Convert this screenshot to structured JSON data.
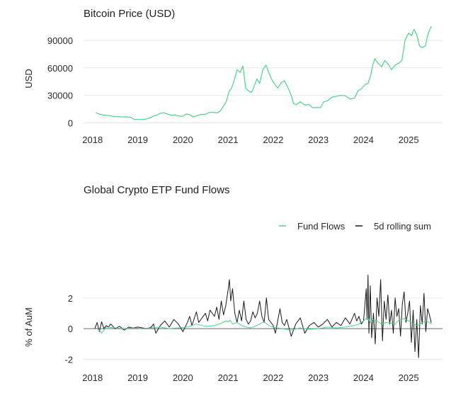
{
  "chart_data": [
    {
      "type": "line",
      "title": "Bitcoin Price (USD)",
      "xlabel": "",
      "ylabel": "USD",
      "x_ticks": [
        "2018",
        "2019",
        "2020",
        "2021",
        "2022",
        "2023",
        "2024",
        "2025"
      ],
      "y_ticks": [
        "0",
        "30000",
        "60000",
        "90000"
      ],
      "xlim": [
        2017.8,
        2025.75
      ],
      "ylim": [
        -5000,
        100000
      ],
      "grid": true,
      "series": [
        {
          "name": "",
          "color": "#4fd18b",
          "x": [
            2018.08,
            2018.15,
            2018.25,
            2018.35,
            2018.45,
            2018.55,
            2018.65,
            2018.75,
            2018.85,
            2018.92,
            2019.0,
            2019.08,
            2019.15,
            2019.25,
            2019.35,
            2019.42,
            2019.5,
            2019.58,
            2019.66,
            2019.75,
            2019.83,
            2019.92,
            2020.0,
            2020.08,
            2020.17,
            2020.22,
            2020.3,
            2020.4,
            2020.5,
            2020.58,
            2020.66,
            2020.75,
            2020.83,
            2020.9,
            2020.96,
            2021.02,
            2021.08,
            2021.14,
            2021.2,
            2021.27,
            2021.33,
            2021.39,
            2021.45,
            2021.52,
            2021.58,
            2021.64,
            2021.7,
            2021.77,
            2021.84,
            2021.9,
            2021.96,
            2022.02,
            2022.1,
            2022.18,
            2022.25,
            2022.33,
            2022.4,
            2022.45,
            2022.52,
            2022.6,
            2022.7,
            2022.8,
            2022.87,
            2022.95,
            2023.05,
            2023.12,
            2023.2,
            2023.3,
            2023.4,
            2023.5,
            2023.6,
            2023.7,
            2023.8,
            2023.88,
            2023.95,
            2024.04,
            2024.1,
            2024.16,
            2024.2,
            2024.25,
            2024.32,
            2024.4,
            2024.47,
            2024.55,
            2024.62,
            2024.7,
            2024.78,
            2024.85,
            2024.92,
            2025.0,
            2025.06,
            2025.12,
            2025.18,
            2025.24,
            2025.3,
            2025.37,
            2025.43,
            2025.5
          ],
          "y": [
            11000,
            9500,
            8500,
            8000,
            7200,
            6800,
            6500,
            6500,
            6000,
            3800,
            3700,
            3600,
            3800,
            5000,
            7500,
            8500,
            10500,
            11000,
            9500,
            8300,
            8700,
            7300,
            7200,
            9800,
            8500,
            6500,
            7500,
            9200,
            9300,
            11300,
            11600,
            10800,
            13000,
            18500,
            23000,
            34000,
            38000,
            47000,
            58000,
            55000,
            62000,
            38000,
            35000,
            33000,
            40000,
            48000,
            43000,
            58000,
            63000,
            55000,
            48000,
            43000,
            38000,
            44000,
            46000,
            38000,
            30000,
            21000,
            20000,
            23000,
            19500,
            20000,
            16500,
            16800,
            16700,
            23000,
            24000,
            28000,
            29000,
            30000,
            29500,
            26000,
            27000,
            35000,
            37000,
            42000,
            43000,
            52000,
            62000,
            70000,
            65000,
            61000,
            68000,
            64000,
            58000,
            63000,
            65000,
            68000,
            90000,
            98000,
            95000,
            102000,
            96000,
            84000,
            82000,
            84000,
            97000,
            105000
          ]
        }
      ]
    },
    {
      "type": "line",
      "title": "Global Crypto ETP Fund Flows",
      "xlabel": "",
      "ylabel": "% of AuM",
      "x_ticks": [
        "2018",
        "2019",
        "2020",
        "2021",
        "2022",
        "2023",
        "2024",
        "2025"
      ],
      "y_ticks": [
        "-2",
        "0",
        "2"
      ],
      "xlim": [
        2017.8,
        2025.75
      ],
      "ylim": [
        -2.4,
        3.7
      ],
      "grid": true,
      "legend_position": "top-right",
      "series": [
        {
          "name": "Fund Flows",
          "color": "#4fd18b",
          "x": [
            2018.1,
            2018.2,
            2018.3,
            2018.5,
            2018.7,
            2018.9,
            2019.1,
            2019.3,
            2019.5,
            2019.7,
            2019.9,
            2020.1,
            2020.3,
            2020.5,
            2020.7,
            2020.85,
            2020.95,
            2021.0,
            2021.05,
            2021.1,
            2021.2,
            2021.3,
            2021.4,
            2021.5,
            2021.6,
            2021.7,
            2021.8,
            2021.9,
            2022.0,
            2022.2,
            2022.4,
            2022.6,
            2022.8,
            2023.0,
            2023.2,
            2023.4,
            2023.6,
            2023.8,
            2023.9,
            2024.0,
            2024.05,
            2024.1,
            2024.15,
            2024.2,
            2024.3,
            2024.4,
            2024.5,
            2024.6,
            2024.7,
            2024.8,
            2024.9,
            2025.0,
            2025.1,
            2025.2,
            2025.3,
            2025.4,
            2025.5
          ],
          "y": [
            0.05,
            -0.3,
            0.1,
            0.05,
            0.0,
            0.05,
            0.0,
            0.05,
            0.1,
            0.0,
            0.05,
            0.1,
            0.3,
            0.15,
            0.2,
            0.35,
            0.5,
            0.45,
            0.55,
            0.3,
            0.4,
            0.2,
            0.1,
            0.05,
            0.15,
            0.3,
            0.45,
            0.2,
            0.1,
            0.0,
            -0.1,
            0.05,
            -0.05,
            0.0,
            0.1,
            0.05,
            0.1,
            0.2,
            0.3,
            0.5,
            0.65,
            0.7,
            0.4,
            0.6,
            0.5,
            0.3,
            0.4,
            0.35,
            0.3,
            0.6,
            0.65,
            0.5,
            0.3,
            0.2,
            0.4,
            0.5,
            0.3
          ]
        },
        {
          "name": "5d rolling sum",
          "color": "#1a1a1a",
          "x": [
            2018.05,
            2018.1,
            2018.15,
            2018.2,
            2018.25,
            2018.3,
            2018.35,
            2018.4,
            2018.5,
            2018.6,
            2018.7,
            2018.8,
            2018.9,
            2019.0,
            2019.1,
            2019.2,
            2019.3,
            2019.35,
            2019.4,
            2019.5,
            2019.6,
            2019.7,
            2019.8,
            2019.9,
            2020.0,
            2020.1,
            2020.15,
            2020.2,
            2020.3,
            2020.35,
            2020.4,
            2020.5,
            2020.55,
            2020.6,
            2020.7,
            2020.75,
            2020.8,
            2020.85,
            2020.9,
            2020.95,
            2021.0,
            2021.03,
            2021.06,
            2021.1,
            2021.15,
            2021.2,
            2021.25,
            2021.3,
            2021.35,
            2021.4,
            2021.45,
            2021.5,
            2021.55,
            2021.6,
            2021.65,
            2021.7,
            2021.75,
            2021.8,
            2021.85,
            2021.9,
            2021.95,
            2022.0,
            2022.05,
            2022.1,
            2022.15,
            2022.2,
            2022.25,
            2022.3,
            2022.4,
            2022.5,
            2022.6,
            2022.7,
            2022.8,
            2022.9,
            2023.0,
            2023.1,
            2023.2,
            2023.3,
            2023.4,
            2023.5,
            2023.6,
            2023.7,
            2023.8,
            2023.85,
            2023.9,
            2023.95,
            2024.0,
            2024.03,
            2024.06,
            2024.08,
            2024.1,
            2024.12,
            2024.15,
            2024.18,
            2024.22,
            2024.26,
            2024.3,
            2024.34,
            2024.38,
            2024.42,
            2024.46,
            2024.5,
            2024.54,
            2024.58,
            2024.62,
            2024.66,
            2024.7,
            2024.74,
            2024.78,
            2024.82,
            2024.86,
            2024.9,
            2024.94,
            2024.98,
            2025.02,
            2025.06,
            2025.1,
            2025.14,
            2025.18,
            2025.22,
            2025.26,
            2025.3,
            2025.34,
            2025.38,
            2025.42,
            2025.46,
            2025.5
          ],
          "y": [
            0.0,
            0.4,
            -0.2,
            0.45,
            0.0,
            0.2,
            0.1,
            0.3,
            0.0,
            0.15,
            -0.1,
            0.1,
            0.05,
            0.1,
            0.05,
            0.0,
            0.1,
            0.3,
            -0.3,
            0.2,
            0.5,
            0.1,
            0.6,
            0.3,
            -0.2,
            0.4,
            0.8,
            0.2,
            1.1,
            0.4,
            0.6,
            1.0,
            0.5,
            1.2,
            0.8,
            1.4,
            0.6,
            1.8,
            0.9,
            1.5,
            2.5,
            3.2,
            1.8,
            2.6,
            1.0,
            0.4,
            1.2,
            0.5,
            1.8,
            0.6,
            0.3,
            0.5,
            1.1,
            0.7,
            1.0,
            1.8,
            0.8,
            0.4,
            2.0,
            0.6,
            0.4,
            0.2,
            -0.3,
            0.5,
            1.3,
            0.4,
            0.2,
            0.6,
            -0.5,
            0.3,
            0.7,
            -0.3,
            0.2,
            0.4,
            0.1,
            0.3,
            0.6,
            0.1,
            0.4,
            0.2,
            0.7,
            0.3,
            1.0,
            0.5,
            0.8,
            0.3,
            0.5,
            1.5,
            2.6,
            0.6,
            3.5,
            -0.3,
            2.8,
            -0.6,
            1.0,
            -1.0,
            2.0,
            0.8,
            3.2,
            -0.8,
            1.8,
            0.6,
            2.2,
            0.3,
            1.2,
            -0.3,
            2.0,
            0.8,
            1.3,
            -0.5,
            1.6,
            2.4,
            0.4,
            1.0,
            1.8,
            -0.9,
            1.2,
            -1.5,
            0.6,
            -1.9,
            1.5,
            0.3,
            2.3,
            -0.2,
            1.3,
            0.9,
            0.4
          ]
        }
      ]
    }
  ]
}
